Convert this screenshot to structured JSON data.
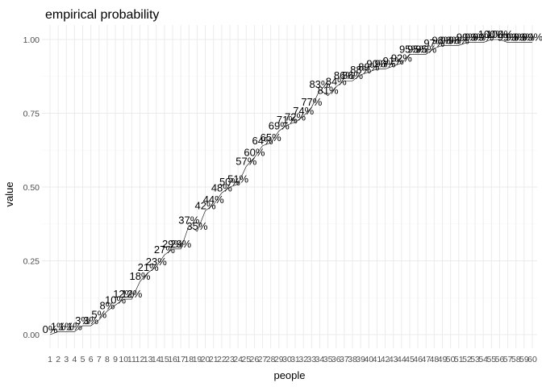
{
  "chart_data": {
    "type": "line",
    "title": "empirical probability",
    "xlabel": "people",
    "ylabel": "value",
    "x": [
      1,
      2,
      3,
      4,
      5,
      6,
      7,
      8,
      9,
      10,
      11,
      12,
      13,
      14,
      15,
      16,
      17,
      18,
      19,
      20,
      21,
      22,
      23,
      24,
      25,
      26,
      27,
      28,
      29,
      30,
      31,
      32,
      33,
      34,
      35,
      36,
      37,
      38,
      39,
      40,
      41,
      42,
      43,
      44,
      45,
      46,
      47,
      48,
      49,
      50,
      51,
      52,
      53,
      54,
      55,
      56,
      57,
      58,
      59,
      60
    ],
    "xlim": [
      1,
      60
    ],
    "ylim": [
      0,
      1
    ],
    "yticks": [
      0.0,
      0.25,
      0.5,
      0.75,
      1.0
    ],
    "ytick_labels": [
      "0.00",
      "0.25",
      "0.50",
      "0.75",
      "1.00"
    ],
    "grid": true,
    "series": [
      {
        "values": [
          0.0,
          0.01,
          0.01,
          0.01,
          0.03,
          0.03,
          0.05,
          0.08,
          0.1,
          0.12,
          0.12,
          0.18,
          0.21,
          0.23,
          0.27,
          0.29,
          0.29,
          0.37,
          0.35,
          0.42,
          0.44,
          0.48,
          0.5,
          0.51,
          0.57,
          0.6,
          0.64,
          0.65,
          0.69,
          0.71,
          0.72,
          0.74,
          0.77,
          0.83,
          0.81,
          0.84,
          0.86,
          0.86,
          0.88,
          0.89,
          0.9,
          0.9,
          0.91,
          0.92,
          0.95,
          0.95,
          0.95,
          0.97,
          0.98,
          0.98,
          0.98,
          0.99,
          0.99,
          0.99,
          1.0,
          1.0,
          0.99,
          0.99,
          0.99,
          0.99
        ],
        "labels": [
          "0%",
          "1%",
          "1%",
          "1%",
          "3%",
          "3%",
          "5%",
          "8%",
          "10%",
          "12%",
          "12%",
          "18%",
          "21%",
          "23%",
          "27%",
          "29%",
          "29%",
          "37%",
          "35%",
          "42%",
          "44%",
          "48%",
          "50%",
          "51%",
          "57%",
          "60%",
          "64%",
          "65%",
          "69%",
          "71%",
          "72%",
          "74%",
          "77%",
          "83%",
          "81%",
          "84%",
          "86%",
          "86%",
          "88%",
          "89%",
          "90%",
          "90%",
          "91%",
          "92%",
          "95%",
          "95%",
          "95%",
          "97%",
          "98%",
          "98%",
          "98%",
          "99%",
          "99%",
          "99%",
          "100%",
          "100%",
          "99%",
          "99%",
          "99%",
          "99%"
        ]
      }
    ]
  },
  "colors": {
    "background": "#ffffff",
    "panel_grid": "#ebebeb",
    "line": "#000000",
    "tick_text": "#4d4d4d"
  }
}
